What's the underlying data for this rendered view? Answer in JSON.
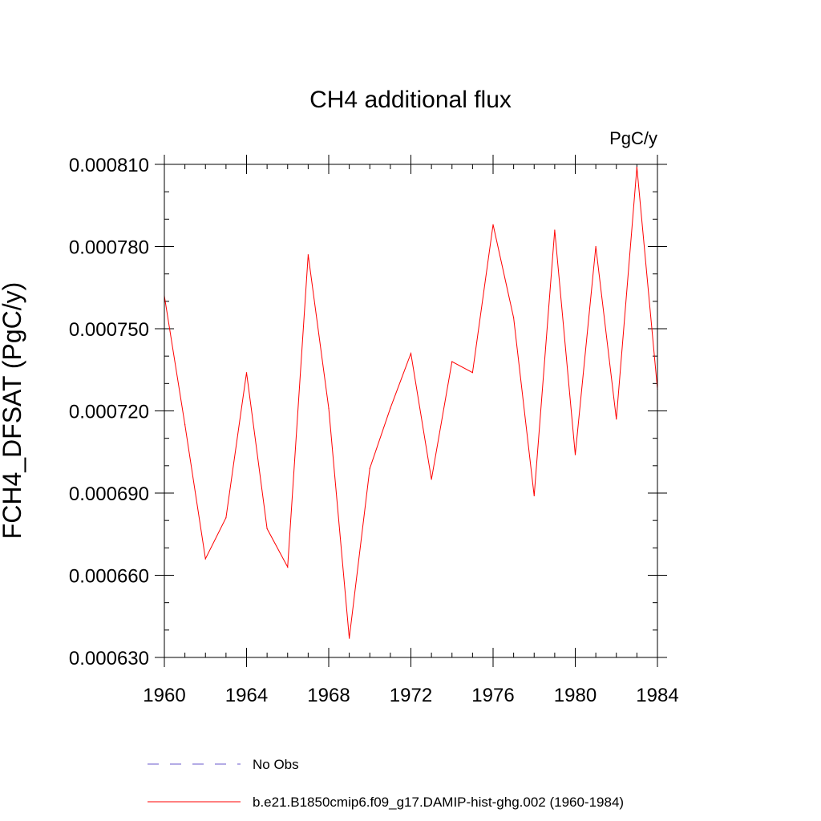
{
  "chart_data": {
    "type": "line",
    "title": "CH4 additional flux",
    "units": "PgC/y",
    "ylabel": "FCH4_DFSAT  (PgC/y)",
    "xlabel": "",
    "xlim": [
      1960,
      1984
    ],
    "ylim": [
      0.00063,
      0.00081
    ],
    "x_ticks": [
      1960,
      1964,
      1968,
      1972,
      1976,
      1980,
      1984
    ],
    "x_tick_labels": [
      "1960",
      "1964",
      "1968",
      "1972",
      "1976",
      "1980",
      "1984"
    ],
    "y_ticks": [
      0.00063,
      0.00066,
      0.00069,
      0.00072,
      0.00075,
      0.00078,
      0.00081
    ],
    "y_tick_labels": [
      "0.000630",
      "0.000660",
      "0.000690",
      "0.000720",
      "0.000750",
      "0.000780",
      "0.000810"
    ],
    "x_minor_step": 1,
    "y_minor_step": 1e-05,
    "grid": false,
    "legend_position": "bottom",
    "series": [
      {
        "name": "No Obs",
        "color": "#6a5acd",
        "dash": "dashed",
        "x": [],
        "values": []
      },
      {
        "name": "b.e21.B1850cmip6.f09_g17.DAMIP-hist-ghg.002 (1960-1984)",
        "color": "#ff0000",
        "dash": "solid",
        "x": [
          1960,
          1961,
          1962,
          1963,
          1964,
          1965,
          1966,
          1967,
          1968,
          1969,
          1970,
          1971,
          1972,
          1973,
          1974,
          1975,
          1976,
          1977,
          1978,
          1979,
          1980,
          1981,
          1982,
          1983,
          1984
        ],
        "values": [
          0.000762,
          0.000715,
          0.000666,
          0.000681,
          0.000734,
          0.000677,
          0.000663,
          0.000777,
          0.000721,
          0.000637,
          0.000699,
          0.000721,
          0.000741,
          0.000695,
          0.000738,
          0.000734,
          0.000788,
          0.000754,
          0.000689,
          0.000786,
          0.000704,
          0.00078,
          0.000717,
          0.000809,
          0.000728
        ]
      }
    ]
  }
}
